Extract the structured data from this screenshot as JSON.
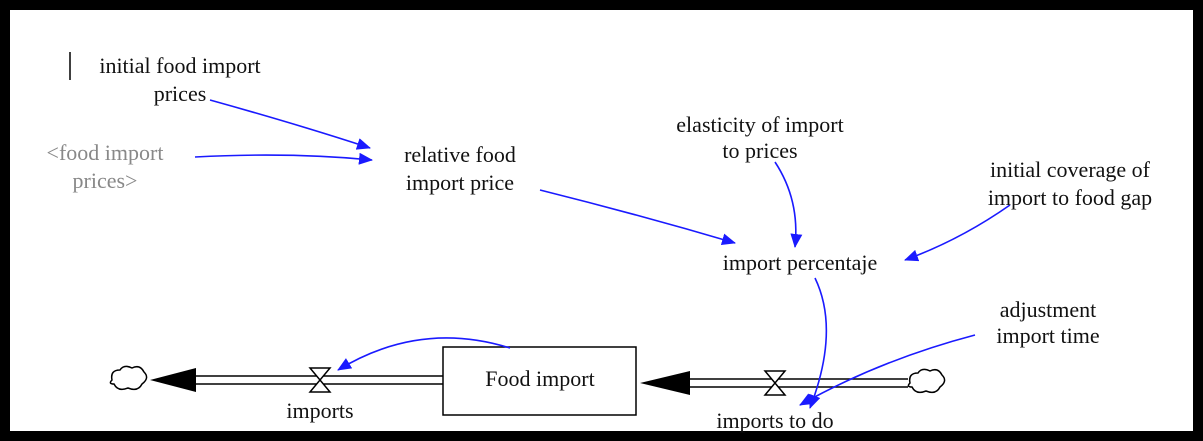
{
  "nodes": [
    {
      "lines": [
        "initial food import",
        "prices"
      ]
    },
    {
      "lines": [
        "<food import",
        "prices>"
      ]
    },
    {
      "lines": [
        "relative food",
        "import price"
      ]
    },
    {
      "lines": [
        "elasticity of import",
        "to prices"
      ]
    },
    {
      "lines": [
        "initial coverage of",
        "import to food gap"
      ]
    },
    {
      "lines": [
        "import percentaje"
      ]
    },
    {
      "lines": [
        "adjustment",
        "import time"
      ]
    },
    {
      "lines": [
        "Food import"
      ]
    },
    {
      "lines": [
        "imports"
      ]
    },
    {
      "lines": [
        "imports to do"
      ]
    }
  ]
}
